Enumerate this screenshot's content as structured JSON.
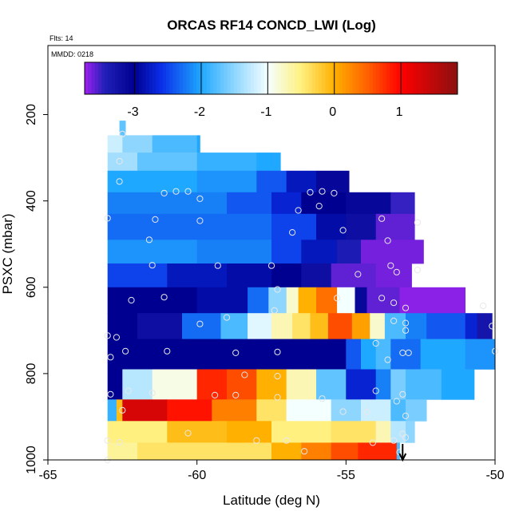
{
  "chart_data": {
    "type": "heatmap",
    "title": "ORCAS RF14 CONCD_LWI (Log)",
    "flts_label": "Flts: 14",
    "mmdd_label": "MMDD: 0218",
    "xlabel": "Latitude (deg N)",
    "ylabel": "PSXC (mbar)",
    "xlim": [
      -65,
      -50
    ],
    "ylim": [
      1000,
      40
    ],
    "y_reversed": true,
    "x_ticks": [
      -65,
      -60,
      -55,
      -50
    ],
    "x_tick_labels": [
      "-65",
      "-60",
      "-55",
      "-50"
    ],
    "y_ticks": [
      200,
      400,
      600,
      800,
      1000
    ],
    "y_tick_labels": [
      "200",
      "400",
      "600",
      "800",
      "1000"
    ],
    "colorbar": {
      "range": [
        -3.75,
        1.85
      ],
      "ticks": [
        -3,
        -2,
        -1,
        0,
        1
      ],
      "tick_labels": [
        "-3",
        "-2",
        "-1",
        "0",
        "1"
      ],
      "stops": [
        {
          "v": -3.75,
          "c": "#a020f0"
        },
        {
          "v": -3.45,
          "c": "#2020b8"
        },
        {
          "v": -3.0,
          "c": "#000090"
        },
        {
          "v": -2.6,
          "c": "#0a2fe8"
        },
        {
          "v": -2.0,
          "c": "#1fa8ff"
        },
        {
          "v": -1.5,
          "c": "#8fd6ff"
        },
        {
          "v": -1.0,
          "c": "#f4ffff"
        },
        {
          "v": -0.5,
          "c": "#fff080"
        },
        {
          "v": 0.0,
          "c": "#ffb000"
        },
        {
          "v": 0.5,
          "c": "#ff6000"
        },
        {
          "v": 1.0,
          "c": "#ff0000"
        },
        {
          "v": 1.85,
          "c": "#8b1010"
        }
      ]
    },
    "bands": [
      {
        "p": [
          214,
          248
        ],
        "seg": [
          [
            -62.6,
            -62.4,
            -1.7
          ]
        ]
      },
      {
        "p": [
          248,
          288
        ],
        "seg": [
          [
            -63.0,
            -62.5,
            -1.2
          ],
          [
            -62.5,
            -61.5,
            -1.5
          ],
          [
            -61.5,
            -60.0,
            -1.8
          ],
          [
            -60.0,
            -59.9,
            -2.0
          ]
        ]
      },
      {
        "p": [
          288,
          330
        ],
        "seg": [
          [
            -63.0,
            -62.0,
            -1.4
          ],
          [
            -62.0,
            -60.0,
            -1.7
          ],
          [
            -60.0,
            -58.0,
            -1.9
          ],
          [
            -58.0,
            -57.2,
            -2.0
          ]
        ]
      },
      {
        "p": [
          330,
          380
        ],
        "seg": [
          [
            -63.0,
            -60.0,
            -2.0
          ],
          [
            -60.0,
            -58.0,
            -2.1
          ],
          [
            -58.0,
            -57.0,
            -2.4
          ],
          [
            -57.0,
            -56.0,
            -2.8
          ],
          [
            -56.0,
            -54.9,
            -3.1
          ]
        ]
      },
      {
        "p": [
          380,
          430
        ],
        "seg": [
          [
            -63.0,
            -59.0,
            -2.2
          ],
          [
            -59.0,
            -57.5,
            -2.4
          ],
          [
            -57.5,
            -56.5,
            -2.7
          ],
          [
            -56.5,
            -55.0,
            -3.0
          ],
          [
            -55.0,
            -53.5,
            -3.1
          ],
          [
            -53.5,
            -52.7,
            -3.5
          ]
        ]
      },
      {
        "p": [
          430,
          490
        ],
        "seg": [
          [
            -63.0,
            -60.0,
            -2.3
          ],
          [
            -60.0,
            -57.5,
            -2.3
          ],
          [
            -57.5,
            -56.0,
            -2.5
          ],
          [
            -56.0,
            -55.0,
            -2.9
          ],
          [
            -55.0,
            -54.0,
            -3.2
          ],
          [
            -54.0,
            -52.7,
            -3.6
          ]
        ]
      },
      {
        "p": [
          490,
          545
        ],
        "seg": [
          [
            -63.0,
            -60.0,
            -2.1
          ],
          [
            -60.0,
            -57.5,
            -2.2
          ],
          [
            -57.5,
            -56.5,
            -2.5
          ],
          [
            -56.5,
            -55.3,
            -2.8
          ],
          [
            -55.3,
            -54.5,
            -3.4
          ],
          [
            -54.5,
            -52.4,
            -3.65
          ]
        ]
      },
      {
        "p": [
          545,
          600
        ],
        "seg": [
          [
            -63.0,
            -61.0,
            -2.5
          ],
          [
            -61.0,
            -59.0,
            -2.8
          ],
          [
            -59.0,
            -57.5,
            -2.9
          ],
          [
            -57.5,
            -56.5,
            -3.0
          ],
          [
            -56.5,
            -55.5,
            -3.2
          ],
          [
            -55.5,
            -54.0,
            -3.6
          ],
          [
            -54.0,
            -52.8,
            -3.65
          ]
        ]
      },
      {
        "p": [
          600,
          660
        ],
        "seg": [
          [
            -63.0,
            -60.0,
            -3.0
          ],
          [
            -60.0,
            -58.3,
            -2.9
          ],
          [
            -58.3,
            -57.6,
            -2.3
          ],
          [
            -57.6,
            -57.0,
            -1.5
          ],
          [
            -57.0,
            -56.6,
            -0.8
          ],
          [
            -56.6,
            -56.0,
            0.0
          ],
          [
            -56.0,
            -55.3,
            0.4
          ],
          [
            -55.3,
            -54.7,
            -1.0
          ],
          [
            -54.7,
            -54.3,
            -3.1
          ],
          [
            -54.3,
            -53.2,
            -3.6
          ],
          [
            -53.2,
            -51.0,
            -3.7
          ]
        ]
      },
      {
        "p": [
          660,
          720
        ],
        "seg": [
          [
            -63.0,
            -62.0,
            -3.0
          ],
          [
            -62.0,
            -60.5,
            -3.2
          ],
          [
            -60.5,
            -59.2,
            -2.3
          ],
          [
            -59.2,
            -58.3,
            -1.8
          ],
          [
            -58.3,
            -57.5,
            -1.1
          ],
          [
            -57.5,
            -56.8,
            -0.7
          ],
          [
            -56.8,
            -56.2,
            -0.4
          ],
          [
            -56.2,
            -55.6,
            -0.1
          ],
          [
            -55.6,
            -54.8,
            0.6
          ],
          [
            -54.8,
            -54.2,
            0.1
          ],
          [
            -54.2,
            -53.7,
            -0.8
          ],
          [
            -53.7,
            -53.0,
            -1.8
          ],
          [
            -53.0,
            -52.3,
            -2.2
          ],
          [
            -52.3,
            -51.0,
            -2.4
          ],
          [
            -51.0,
            -50.6,
            -2.7
          ],
          [
            -50.6,
            -50.1,
            -3.3
          ]
        ]
      },
      {
        "p": [
          720,
          790
        ],
        "seg": [
          [
            -63.0,
            -55.0,
            -3.0
          ],
          [
            -55.0,
            -54.5,
            -2.4
          ],
          [
            -54.5,
            -54.0,
            -2.0
          ],
          [
            -54.0,
            -53.5,
            -1.8
          ],
          [
            -53.5,
            -52.5,
            -2.3
          ],
          [
            -52.5,
            -51.0,
            -2.0
          ],
          [
            -51.0,
            -50.0,
            -2.1
          ]
        ]
      },
      {
        "p": [
          790,
          860
        ],
        "seg": [
          [
            -63.0,
            -62.5,
            -3.0
          ],
          [
            -62.5,
            -61.5,
            -1.3
          ],
          [
            -61.5,
            -60.0,
            -0.9
          ],
          [
            -60.0,
            -59.0,
            0.8
          ],
          [
            -59.0,
            -58.0,
            0.6
          ],
          [
            -58.0,
            -57.0,
            0.0
          ],
          [
            -57.0,
            -56.0,
            -0.7
          ],
          [
            -56.0,
            -55.0,
            -1.7
          ],
          [
            -55.0,
            -54.0,
            -2.7
          ],
          [
            -54.0,
            -53.5,
            -2.2
          ],
          [
            -53.5,
            -53.0,
            -1.6
          ],
          [
            -53.0,
            -51.8,
            -1.8
          ],
          [
            -51.8,
            -50.7,
            -2.0
          ]
        ]
      },
      {
        "p": [
          860,
          910
        ],
        "seg": [
          [
            -63.0,
            -62.7,
            -1.9
          ],
          [
            -62.7,
            -62.5,
            -0.1
          ],
          [
            -62.5,
            -61.0,
            1.3
          ],
          [
            -61.0,
            -59.5,
            0.9
          ],
          [
            -59.5,
            -58.0,
            0.3
          ],
          [
            -58.0,
            -57.0,
            -0.4
          ],
          [
            -57.0,
            -55.5,
            -1.0
          ],
          [
            -55.5,
            -54.5,
            -1.5
          ],
          [
            -54.5,
            -53.5,
            -1.2
          ],
          [
            -53.5,
            -53.0,
            -1.8
          ],
          [
            -53.0,
            -52.3,
            -1.6
          ]
        ]
      },
      {
        "p": [
          910,
          960
        ],
        "seg": [
          [
            -63.0,
            -61.0,
            -0.5
          ],
          [
            -61.0,
            -59.0,
            -0.1
          ],
          [
            -59.0,
            -57.5,
            0.0
          ],
          [
            -57.5,
            -55.5,
            -0.5
          ],
          [
            -55.5,
            -54.0,
            -0.4
          ],
          [
            -54.0,
            -53.5,
            -0.7
          ],
          [
            -53.5,
            -53.0,
            -1.3
          ],
          [
            -53.0,
            -52.7,
            -1.5
          ]
        ]
      },
      {
        "p": [
          960,
          1000
        ],
        "seg": [
          [
            -63.0,
            -62.0,
            -0.6
          ],
          [
            -62.0,
            -57.5,
            -0.4
          ],
          [
            -57.5,
            -56.5,
            0.0
          ],
          [
            -56.5,
            -55.5,
            0.3
          ],
          [
            -55.5,
            -54.6,
            0.6
          ],
          [
            -54.6,
            -53.3,
            0.8
          ],
          [
            -53.3,
            -53.2,
            -1.8
          ]
        ]
      }
    ],
    "points": [
      [
        -62.5,
        245
      ],
      [
        -62.6,
        308
      ],
      [
        -62.6,
        355
      ],
      [
        -61.1,
        382
      ],
      [
        -60.7,
        378
      ],
      [
        -60.3,
        378
      ],
      [
        -59.9,
        395
      ],
      [
        -63.0,
        440
      ],
      [
        -61.4,
        443
      ],
      [
        -59.9,
        446
      ],
      [
        -56.6,
        422
      ],
      [
        -56.2,
        380
      ],
      [
        -55.8,
        378
      ],
      [
        -55.4,
        382
      ],
      [
        -55.1,
        468
      ],
      [
        -56.8,
        473
      ],
      [
        -55.9,
        412
      ],
      [
        -53.8,
        441
      ],
      [
        -52.6,
        450
      ],
      [
        -53.6,
        492
      ],
      [
        -61.6,
        490
      ],
      [
        -61.5,
        549
      ],
      [
        -59.3,
        550
      ],
      [
        -57.5,
        550
      ],
      [
        -57.3,
        605
      ],
      [
        -53.5,
        550
      ],
      [
        -53.3,
        565
      ],
      [
        -52.6,
        560
      ],
      [
        -54.6,
        570
      ],
      [
        -62.2,
        630
      ],
      [
        -61.1,
        623
      ],
      [
        -59.9,
        685
      ],
      [
        -59.0,
        670
      ],
      [
        -57.4,
        654
      ],
      [
        -55.3,
        625
      ],
      [
        -53.8,
        625
      ],
      [
        -53.4,
        636
      ],
      [
        -53.0,
        648
      ],
      [
        -53.4,
        678
      ],
      [
        -53.0,
        683
      ],
      [
        -53.0,
        700
      ],
      [
        -50.4,
        643
      ],
      [
        -50.1,
        690
      ],
      [
        -63.0,
        712
      ],
      [
        -62.7,
        716
      ],
      [
        -62.4,
        748
      ],
      [
        -61.0,
        748
      ],
      [
        -58.7,
        752
      ],
      [
        -57.3,
        750
      ],
      [
        -54.0,
        730
      ],
      [
        -53.6,
        768
      ],
      [
        -53.1,
        752
      ],
      [
        -52.9,
        752
      ],
      [
        -50.0,
        748
      ],
      [
        -58.4,
        803
      ],
      [
        -57.3,
        806
      ],
      [
        -62.9,
        762
      ],
      [
        -62.9,
        848
      ],
      [
        -62.3,
        840
      ],
      [
        -61.5,
        845
      ],
      [
        -59.4,
        850
      ],
      [
        -58.7,
        850
      ],
      [
        -57.3,
        855
      ],
      [
        -55.8,
        858
      ],
      [
        -55.1,
        888
      ],
      [
        -54.0,
        840
      ],
      [
        -53.1,
        848
      ],
      [
        -53.3,
        864
      ],
      [
        -53.0,
        898
      ],
      [
        -54.3,
        888
      ],
      [
        -62.5,
        885
      ],
      [
        -63.0,
        955
      ],
      [
        -62.6,
        959
      ],
      [
        -60.3,
        938
      ],
      [
        -58.0,
        955
      ],
      [
        -57.0,
        955
      ],
      [
        -56.4,
        980
      ],
      [
        -54.1,
        960
      ],
      [
        -53.4,
        955
      ],
      [
        -53.1,
        940
      ],
      [
        -53.0,
        948
      ],
      [
        -53.2,
        982
      ],
      [
        -63.0,
        1000
      ]
    ],
    "arrow_lat": -53.1
  }
}
